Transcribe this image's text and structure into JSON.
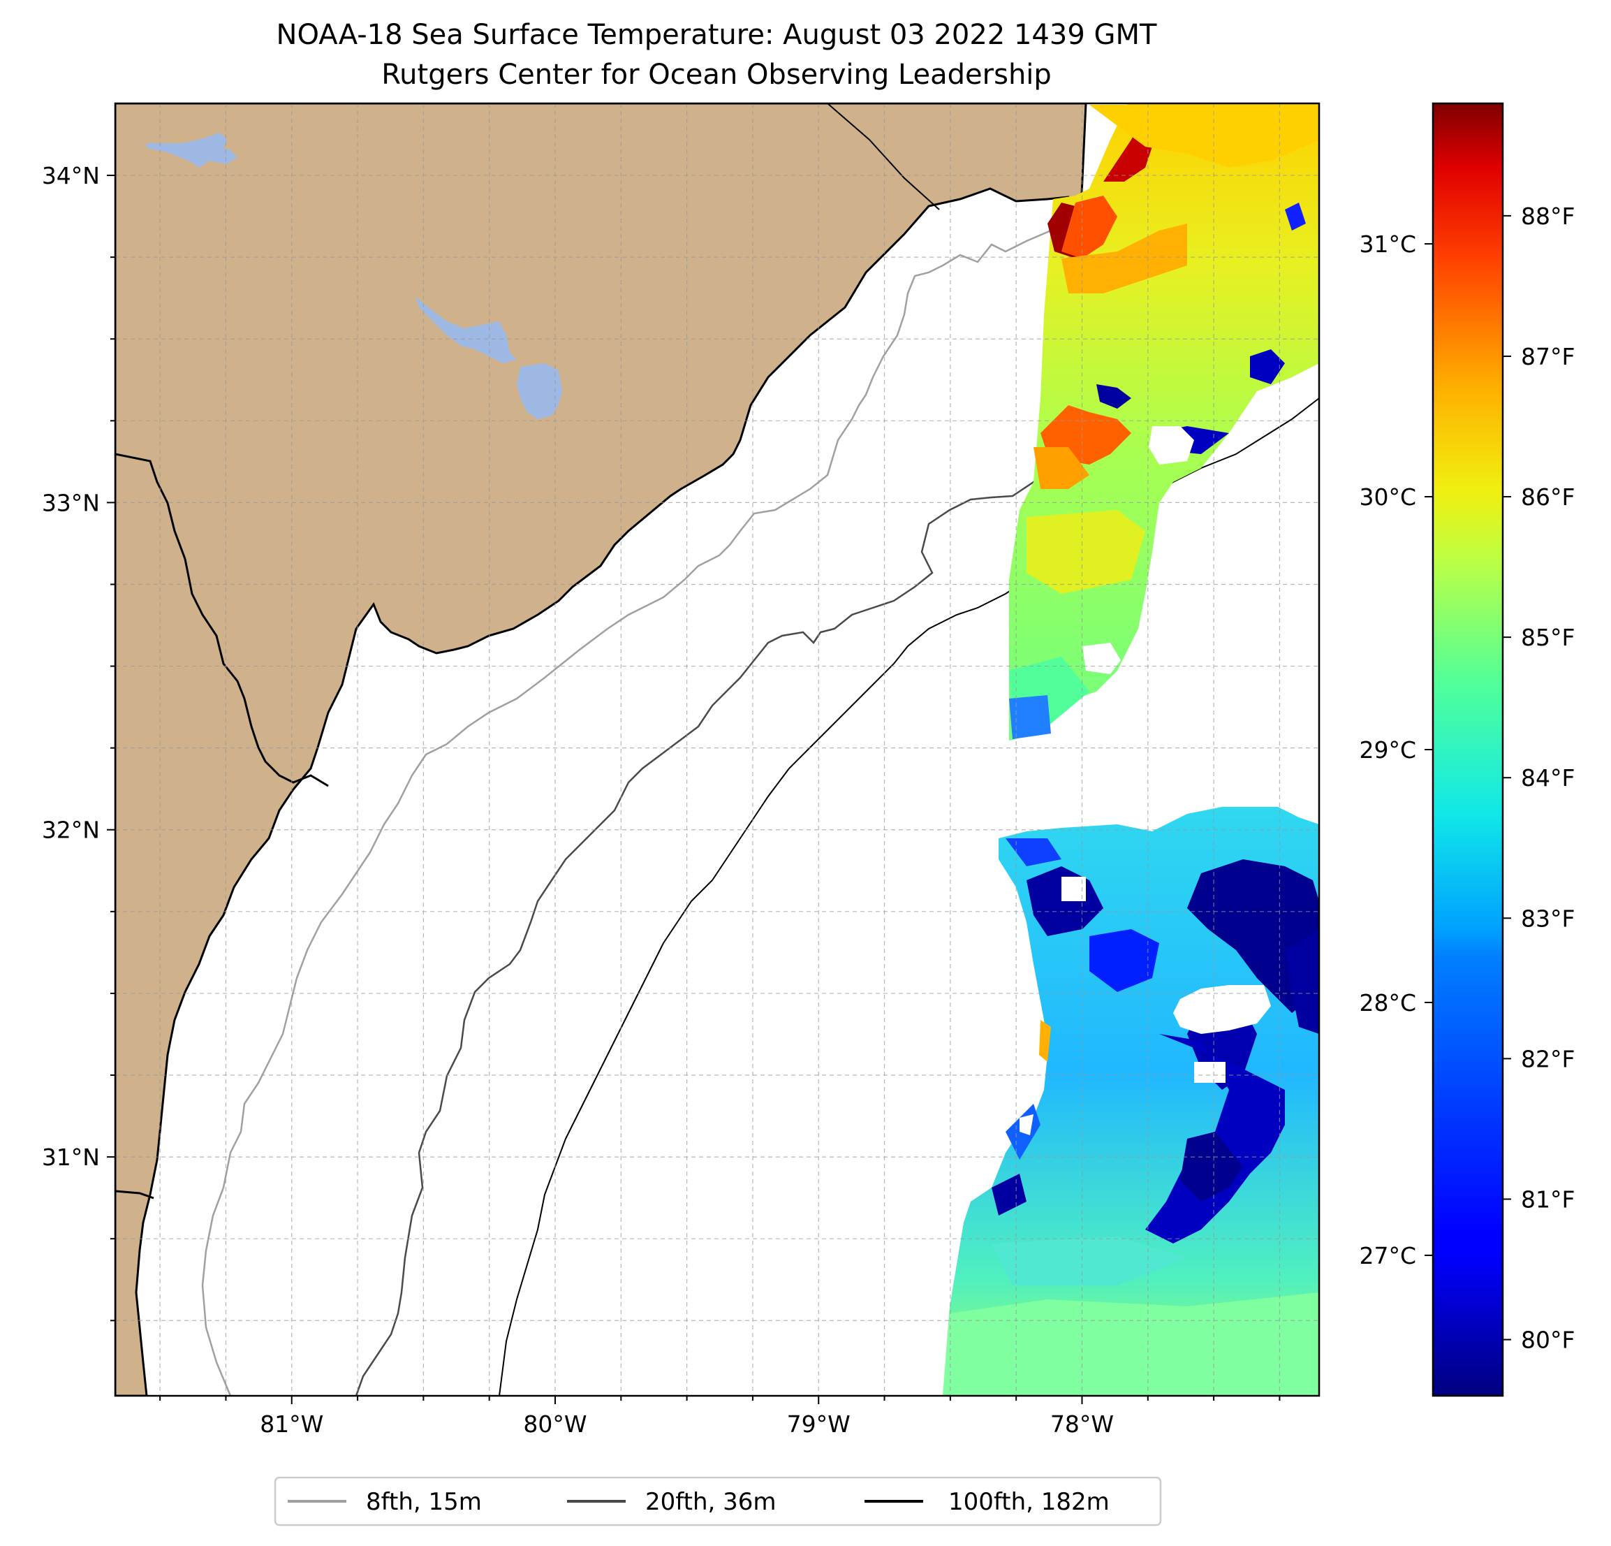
{
  "title": "NOAA-18 Sea Surface Temperature: August 03 2022 1439 GMT",
  "subtitle": "Rutgers Center for Ocean Observing Leadership",
  "map": {
    "lon_range": [
      -81.67,
      -77.1
    ],
    "lat_range": [
      30.27,
      34.22
    ],
    "land_color": "#CFB28B",
    "water_color": "#9DB8E3",
    "lon_ticks": [
      {
        "value": -81,
        "label": "81°W"
      },
      {
        "value": -80,
        "label": "80°W"
      },
      {
        "value": -79,
        "label": "79°W"
      },
      {
        "value": -78,
        "label": "78°W"
      }
    ],
    "lat_ticks": [
      {
        "value": 34,
        "label": "34°N"
      },
      {
        "value": 33,
        "label": "33°N"
      },
      {
        "value": 32,
        "label": "32°N"
      },
      {
        "value": 31,
        "label": "31°N"
      }
    ],
    "gridlines": "dashed, every 0.25°"
  },
  "colorbar": {
    "colormap": "jet",
    "celsius_ticks": [
      {
        "value": 27,
        "label": "27°C"
      },
      {
        "value": 28,
        "label": "28°C"
      },
      {
        "value": 29,
        "label": "29°C"
      },
      {
        "value": 30,
        "label": "30°C"
      },
      {
        "value": 31,
        "label": "31°C"
      }
    ],
    "fahrenheit_ticks": [
      {
        "value": 80,
        "label": "80°F"
      },
      {
        "value": 81,
        "label": "81°F"
      },
      {
        "value": 82,
        "label": "82°F"
      },
      {
        "value": 83,
        "label": "83°F"
      },
      {
        "value": 84,
        "label": "84°F"
      },
      {
        "value": 85,
        "label": "85°F"
      },
      {
        "value": 86,
        "label": "86°F"
      },
      {
        "value": 87,
        "label": "87°F"
      },
      {
        "value": 88,
        "label": "88°F"
      }
    ],
    "range_f": [
      79.6,
      88.8
    ]
  },
  "legend": [
    {
      "label": "8fth, 15m",
      "color": "#a0a0a0"
    },
    {
      "label": "20fth, 36m",
      "color": "#4a4a4a"
    },
    {
      "label": "100fth, 182m",
      "color": "#000000"
    }
  ]
}
